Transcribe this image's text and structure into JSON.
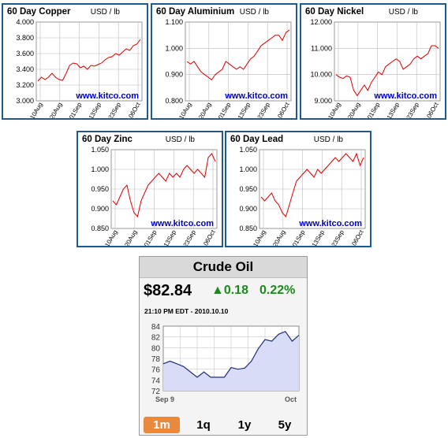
{
  "source_label": "www.kitco.com",
  "x_tick_labels": [
    "10Aug",
    "20Aug",
    "01Sep",
    "13Sep",
    "23Sep",
    "06Oct"
  ],
  "colors": {
    "line": "#dd0000",
    "panel_border": "#1c5b8e",
    "link": "#0000cc",
    "oil_line": "#1f2d7a",
    "oil_fill": "#d9dcf7",
    "oil_up": "#1a8a1a",
    "active_btn": "#e8893e"
  },
  "metals": [
    {
      "name": "copper",
      "title": "60 Day Copper",
      "unit": "USD / lb",
      "yticks": [
        "4.000",
        "3.800",
        "3.600",
        "3.400",
        "3.200",
        "3.000"
      ],
      "ylim": [
        3.0,
        4.0
      ],
      "values": [
        3.25,
        3.3,
        3.27,
        3.3,
        3.35,
        3.3,
        3.27,
        3.26,
        3.35,
        3.45,
        3.48,
        3.47,
        3.42,
        3.44,
        3.4,
        3.45,
        3.44,
        3.46,
        3.48,
        3.52,
        3.55,
        3.56,
        3.6,
        3.58,
        3.62,
        3.66,
        3.64,
        3.7,
        3.72,
        3.78
      ]
    },
    {
      "name": "aluminium",
      "title": "60 Day Aluminium",
      "unit": "USD / lb",
      "yticks": [
        "1.100",
        "1.000",
        "0.900",
        "0.800"
      ],
      "ylim": [
        0.8,
        1.1
      ],
      "values": [
        0.95,
        0.94,
        0.95,
        0.93,
        0.91,
        0.9,
        0.89,
        0.88,
        0.9,
        0.91,
        0.92,
        0.95,
        0.94,
        0.93,
        0.92,
        0.93,
        0.92,
        0.94,
        0.96,
        0.97,
        0.99,
        1.01,
        1.02,
        1.03,
        1.04,
        1.05,
        1.05,
        1.03,
        1.06,
        1.07
      ]
    },
    {
      "name": "nickel",
      "title": "60 Day Nickel",
      "unit": "USD / lb",
      "yticks": [
        "12.000",
        "11.000",
        "10.000",
        "9.000"
      ],
      "ylim": [
        9.0,
        12.0
      ],
      "values": [
        10.0,
        9.9,
        9.85,
        9.95,
        9.9,
        9.4,
        9.2,
        9.4,
        9.6,
        9.4,
        9.7,
        9.9,
        10.1,
        10.0,
        10.3,
        10.4,
        10.5,
        10.6,
        10.5,
        10.2,
        10.3,
        10.4,
        10.6,
        10.7,
        10.6,
        10.7,
        10.8,
        11.1,
        11.1,
        11.0
      ]
    },
    {
      "name": "zinc",
      "title": "60 Day Zinc",
      "unit": "USD / lb",
      "yticks": [
        "1.050",
        "1.000",
        "0.950",
        "0.900",
        "0.850"
      ],
      "ylim": [
        0.85,
        1.05
      ],
      "values": [
        0.92,
        0.91,
        0.93,
        0.95,
        0.96,
        0.92,
        0.89,
        0.88,
        0.92,
        0.94,
        0.96,
        0.97,
        0.98,
        0.99,
        0.98,
        0.97,
        0.99,
        0.98,
        0.99,
        0.98,
        1.0,
        1.01,
        1.0,
        0.99,
        1.0,
        0.99,
        0.98,
        1.03,
        1.04,
        1.02
      ]
    },
    {
      "name": "lead",
      "title": "60 Day Lead",
      "unit": "USD / lb",
      "yticks": [
        "1.050",
        "1.000",
        "0.950",
        "0.900",
        "0.850"
      ],
      "ylim": [
        0.85,
        1.05
      ],
      "values": [
        0.93,
        0.92,
        0.93,
        0.94,
        0.92,
        0.91,
        0.89,
        0.88,
        0.91,
        0.94,
        0.97,
        0.98,
        0.99,
        1.0,
        0.99,
        0.98,
        1.0,
        0.99,
        1.0,
        1.01,
        1.02,
        1.03,
        1.02,
        1.03,
        1.04,
        1.03,
        1.02,
        1.04,
        1.01,
        1.03
      ]
    }
  ],
  "crude": {
    "title": "Crude Oil",
    "price": "$82.84",
    "change": "▲0.18",
    "percent": "0.22%",
    "timestamp": "21:10 PM EDT - 2010.10.10",
    "yticks": [
      "84",
      "82",
      "80",
      "78",
      "76",
      "74",
      "72"
    ],
    "ylim": [
      72,
      84
    ],
    "x_labels": [
      "Sep 9",
      "Oct"
    ],
    "values": [
      77.0,
      77.5,
      77.0,
      76.5,
      75.5,
      74.5,
      75.5,
      74.5,
      74.5,
      74.5,
      76.3,
      76.0,
      76.2,
      77.5,
      79.8,
      81.5,
      81.2,
      82.5,
      83.0,
      81.2,
      82.3
    ],
    "buttons": [
      "1m",
      "1q",
      "1y",
      "5y"
    ],
    "active_button": "1m"
  }
}
